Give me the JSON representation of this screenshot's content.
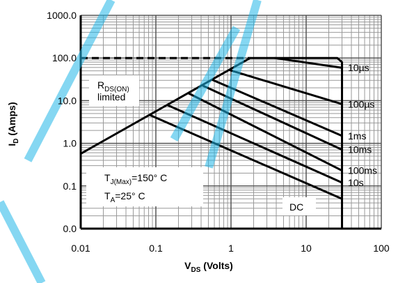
{
  "chart_data": {
    "type": "line",
    "x_label": {
      "main": "V",
      "sub": "DS",
      "rest": " (Volts)"
    },
    "y_label": {
      "main": "I",
      "sub": "D",
      "rest": " (Amps)"
    },
    "xlim": [
      0.01,
      100
    ],
    "ylim": [
      0.01,
      1000
    ],
    "log_x": true,
    "log_y": true,
    "grid": true,
    "xticks": [
      0.01,
      0.1,
      1,
      10,
      100
    ],
    "yticks": [
      {
        "value": 0.01,
        "label": "0.0"
      },
      {
        "value": 0.1,
        "label": "0.1"
      },
      {
        "value": 1,
        "label": "1.0"
      },
      {
        "value": 10,
        "label": "10.0"
      },
      {
        "value": 100,
        "label": "100.0"
      },
      {
        "value": 1000,
        "label": "1000.0"
      }
    ],
    "boundary": {
      "color": "#000000",
      "x": [
        0.01,
        1.8,
        26,
        30,
        30
      ],
      "values": [
        0.57,
        100,
        100,
        80,
        0.01
      ]
    },
    "current_limit": {
      "color": "#000000",
      "dashed": true,
      "x": [
        0.01,
        1.8
      ],
      "values": [
        100,
        100
      ]
    },
    "series": [
      {
        "name": "10µs",
        "color": "#000000",
        "x": [
          3.8,
          30
        ],
        "values": [
          100,
          59
        ]
      },
      {
        "name": "100µs",
        "color": "#000000",
        "x": [
          0.96,
          30
        ],
        "values": [
          52,
          8.3
        ]
      },
      {
        "name": "1ms",
        "color": "#000000",
        "x": [
          0.56,
          30
        ],
        "values": [
          31,
          1.5
        ]
      },
      {
        "name": "10ms",
        "color": "#000000",
        "x": [
          0.41,
          30
        ],
        "values": [
          23,
          0.71
        ]
      },
      {
        "name": "100ms",
        "color": "#000000",
        "x": [
          0.27,
          30
        ],
        "values": [
          15,
          0.23
        ]
      },
      {
        "name": "10s",
        "color": "#000000",
        "x": [
          0.14,
          30
        ],
        "values": [
          8,
          0.12
        ]
      },
      {
        "name": "DC",
        "color": "#000000",
        "x": [
          0.083,
          30
        ],
        "values": [
          4.6,
          0.05
        ]
      }
    ],
    "annotations": {
      "rds": {
        "main": "R",
        "sub": "DS(ON)",
        "rest": "limited"
      },
      "tj": {
        "main": "T",
        "sub": "J(Max)",
        "rest": "=150° C"
      },
      "ta": {
        "main": "T",
        "sub": "A",
        "rest": "=25° C"
      }
    }
  }
}
